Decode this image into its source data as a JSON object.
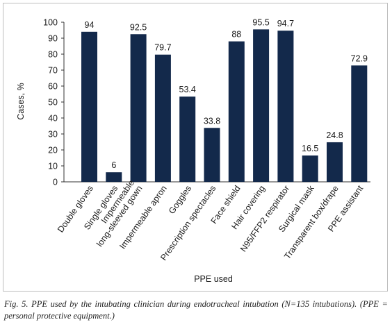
{
  "chart_data": {
    "type": "bar",
    "categories": [
      "Double gloves",
      "Single gloves",
      [
        "Impermeable",
        "long-sleeved gown"
      ],
      "Impermeable apron",
      "Goggles",
      "Prescription spectacles",
      "Face shield",
      "Hair covering",
      "N95/FFP2 respirator",
      "Surgical mask",
      "Transparent box/drape",
      "PPE assistant"
    ],
    "values": [
      94,
      6,
      92.5,
      79.7,
      53.4,
      33.8,
      88,
      95.5,
      94.7,
      16.5,
      24.8,
      72.9
    ],
    "data_labels": [
      "94",
      "6",
      "92.5",
      "79.7",
      "53.4",
      "33.8",
      "88",
      "95.5",
      "94.7",
      "16.5",
      "24.8",
      "72.9"
    ],
    "xlabel": "PPE used",
    "ylabel": "Cases, %",
    "ylim": [
      0,
      100
    ],
    "yticks": [
      "0",
      "10",
      "20",
      "30",
      "40",
      "50",
      "60",
      "70",
      "80",
      "90",
      "100"
    ],
    "grid": false,
    "bar_color": "#13294b"
  },
  "caption": "Fig. 5. PPE used by the intubating clinician during endotracheal intubation (N=135 intubations). (PPE = personal protective equipment.)"
}
